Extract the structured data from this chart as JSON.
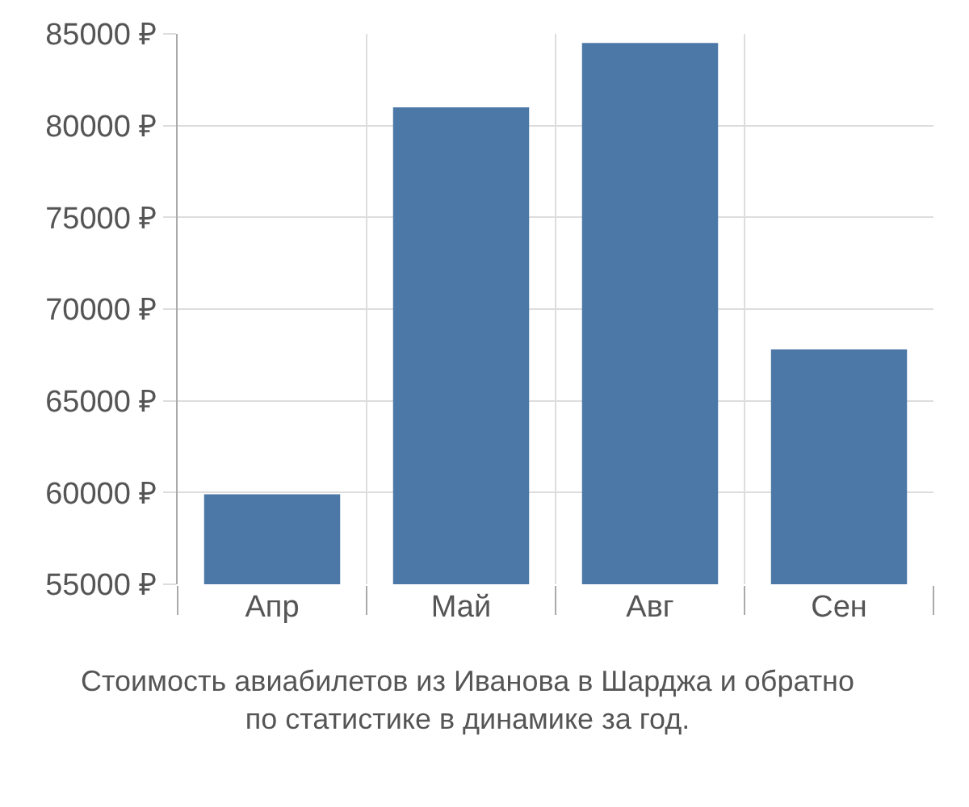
{
  "chart_data": {
    "type": "bar",
    "categories": [
      "Апр",
      "Май",
      "Авг",
      "Сен"
    ],
    "values": [
      59900,
      81000,
      84500,
      67800
    ],
    "color": "#4c78a8",
    "ylim": [
      55000,
      85000
    ],
    "yticks": [
      {
        "value": 55000,
        "label": "55000 ₽"
      },
      {
        "value": 60000,
        "label": "60000 ₽"
      },
      {
        "value": 65000,
        "label": "65000 ₽"
      },
      {
        "value": 70000,
        "label": "70000 ₽"
      },
      {
        "value": 75000,
        "label": "75000 ₽"
      },
      {
        "value": 80000,
        "label": "80000 ₽"
      },
      {
        "value": 85000,
        "label": "85000 ₽"
      }
    ],
    "grid": true,
    "annotations": [
      "Стоимость авиабилетов из Иванова в Шарджа и обратно\nпо статистике в динамике за год."
    ]
  }
}
